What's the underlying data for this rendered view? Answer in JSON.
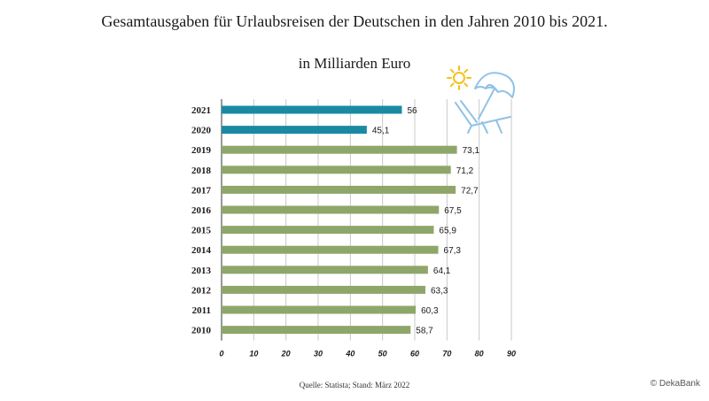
{
  "title": "Gesamtausgaben für Urlaubsreisen der Deutschen in den Jahren 2010 bis 2021.",
  "subtitle": "in Milliarden Euro",
  "source": "Quelle: Statista; Stand: März 2022",
  "copyright": "© DekaBank",
  "colors": {
    "highlight": "#1a8aa3",
    "default": "#8fa66a",
    "grid": "#c8c8c8",
    "icon": "#8fc3e6",
    "sun": "#f2c21b"
  },
  "icons": [
    "sun-icon",
    "beach-umbrella-icon",
    "deck-chair-icon"
  ],
  "chart_data": {
    "type": "bar",
    "orientation": "horizontal",
    "title": "Gesamtausgaben für Urlaubsreisen der Deutschen in den Jahren 2010 bis 2021.",
    "subtitle": "in Milliarden Euro",
    "categories": [
      "2021",
      "2020",
      "2019",
      "2018",
      "2017",
      "2016",
      "2015",
      "2014",
      "2013",
      "2012",
      "2011",
      "2010"
    ],
    "values": [
      56,
      45.1,
      73.1,
      71.2,
      72.7,
      67.5,
      65.9,
      67.3,
      64.1,
      63.3,
      60.3,
      58.7
    ],
    "value_labels": [
      "56",
      "45,1",
      "73,1",
      "71,2",
      "72,7",
      "67,5",
      "65,9",
      "67,3",
      "64,1",
      "63,3",
      "60,3",
      "58,7"
    ],
    "highlighted": [
      "2021",
      "2020"
    ],
    "xticks": [
      0,
      10,
      20,
      30,
      40,
      50,
      60,
      70,
      80,
      90
    ],
    "xlim": [
      0,
      90
    ],
    "grid": true
  }
}
